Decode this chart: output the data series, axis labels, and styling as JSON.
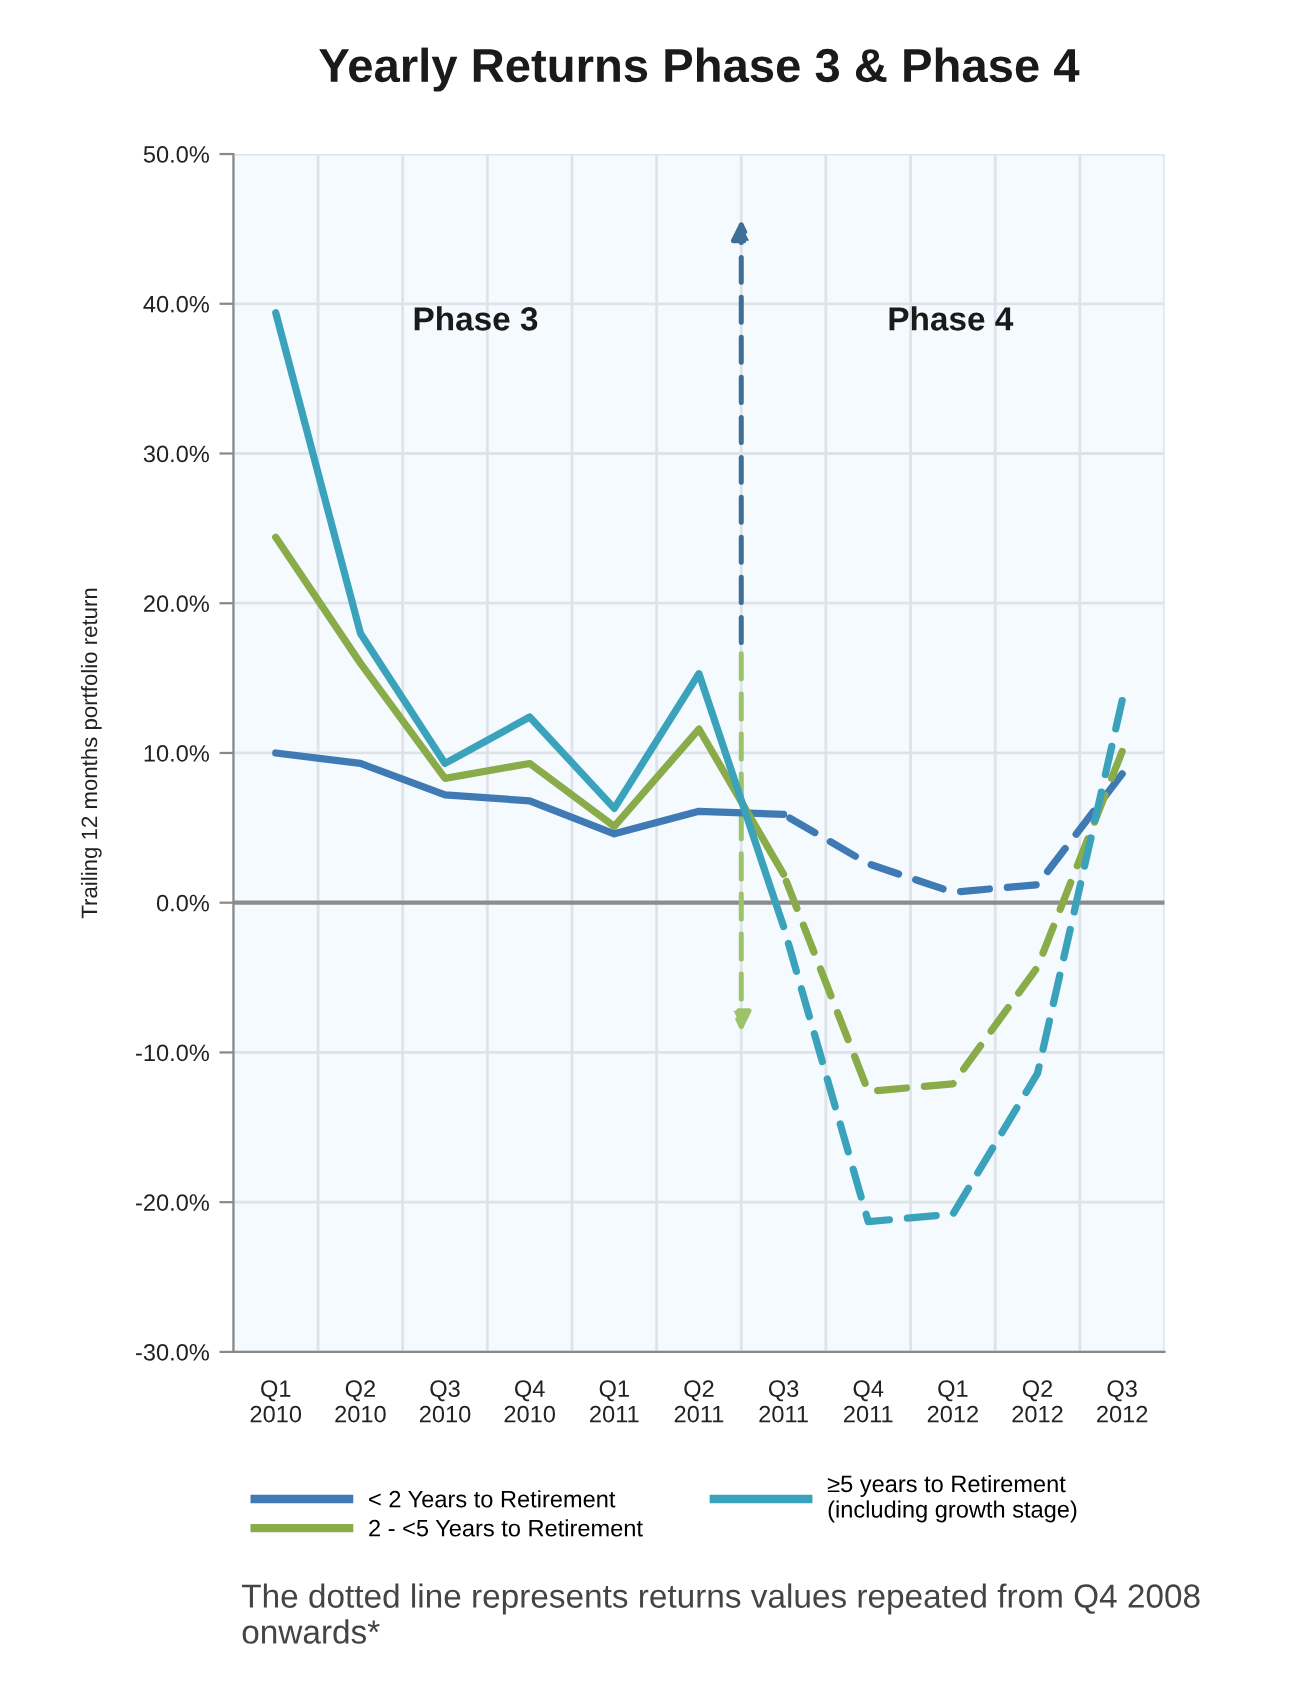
{
  "chart_data": {
    "type": "line",
    "title": "Yearly Returns Phase 3 & Phase 4",
    "ylabel": "Trailing 12 months portfolio return",
    "categories": [
      "Q1\n2010",
      "Q2\n2010",
      "Q3\n2010",
      "Q4\n2010",
      "Q1\n2011",
      "Q2\n2011",
      "Q3\n2011",
      "Q4\n2011",
      "Q1\n2012",
      "Q2\n2012",
      "Q3\n2012"
    ],
    "series": [
      {
        "name": "< 2 Years to Retirement",
        "color": "#3f7ab5",
        "line_style": "solid",
        "values": [
          10.0,
          9.3,
          7.2,
          6.8,
          4.6,
          6.1,
          5.9,
          null,
          null,
          null,
          null
        ]
      },
      {
        "name": "2 - <5 Years to Retirement",
        "color": "#8aab4a",
        "line_style": "solid",
        "values": [
          24.4,
          16.0,
          8.3,
          9.3,
          5.1,
          11.6,
          1.9,
          null,
          null,
          null,
          null
        ]
      },
      {
        "name": "≥5 years to Retirement\n(including growth stage)",
        "color": "#3aa3bb",
        "line_style": "solid",
        "values": [
          39.4,
          18.0,
          9.3,
          12.4,
          6.3,
          15.3,
          -1.6,
          null,
          null,
          null,
          null
        ]
      },
      {
        "color": "#3f7ab5",
        "line_style": "dashed",
        "values": [
          null,
          null,
          null,
          null,
          null,
          null,
          5.9,
          2.6,
          0.7,
          1.2,
          8.6
        ]
      },
      {
        "color": "#8aab4a",
        "line_style": "dashed",
        "values": [
          null,
          null,
          null,
          null,
          null,
          null,
          1.9,
          -12.6,
          -12.1,
          -4.3,
          10.1
        ]
      },
      {
        "color": "#3aa3bb",
        "line_style": "dashed",
        "values": [
          null,
          null,
          null,
          null,
          null,
          null,
          -1.6,
          -21.3,
          -20.8,
          -11.4,
          13.5
        ]
      }
    ],
    "ylim": [
      -30,
      50
    ],
    "yticks": [
      {
        "value": -30,
        "label": "-30.0%"
      },
      {
        "value": -20,
        "label": "-20.0%"
      },
      {
        "value": -10,
        "label": "-10.0%"
      },
      {
        "value": 0,
        "label": "0.0%"
      },
      {
        "value": 10,
        "label": "10.0%"
      },
      {
        "value": 20,
        "label": "20.0%"
      },
      {
        "value": 30,
        "label": "30.0%"
      },
      {
        "value": 40,
        "label": "40.0%"
      },
      {
        "value": 50,
        "label": "50.0%"
      }
    ],
    "ref_lines": [
      {
        "axis": "y",
        "value": 0,
        "color": "#8c8c8c",
        "line_style": "solid"
      }
    ],
    "annotations": [
      "Phase 3",
      "Phase 4",
      "The dotted line represents returns values repeated from Q4 2008 onwards*"
    ],
    "grid": true,
    "legend": "bottom",
    "marker": "none"
  }
}
